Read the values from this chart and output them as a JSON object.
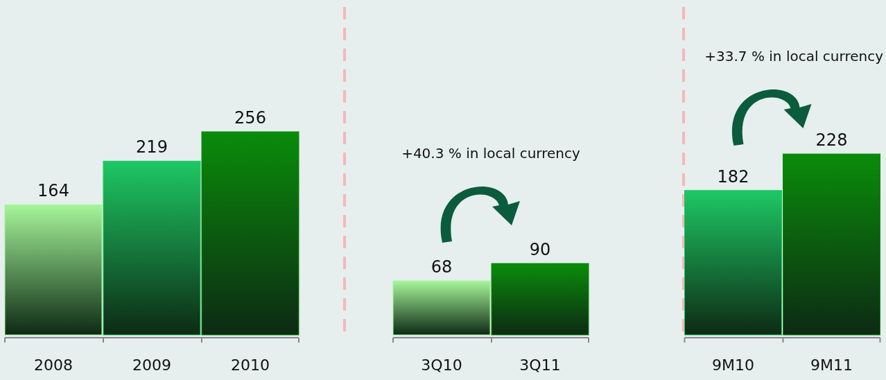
{
  "chart_data": [
    {
      "type": "bar",
      "categories": [
        "2008",
        "2009",
        "2010"
      ],
      "values": [
        164,
        219,
        256
      ],
      "colors": [
        "#a6f59a",
        "#1ec864",
        "#0a8c0a"
      ],
      "data_labels": true
    },
    {
      "type": "bar",
      "categories": [
        "3Q10",
        "3Q11"
      ],
      "values": [
        68,
        90
      ],
      "colors": [
        "#a6f59a",
        "#0a8c0a"
      ],
      "data_labels": true,
      "annotations": [
        "+40.3 % in local currency"
      ]
    },
    {
      "type": "bar",
      "categories": [
        "9M10",
        "9M11"
      ],
      "values": [
        182,
        228
      ],
      "colors": [
        "#1ec864",
        "#0a8c0a"
      ],
      "data_labels": true,
      "annotations": [
        "+33.7 % in local currency"
      ]
    }
  ]
}
